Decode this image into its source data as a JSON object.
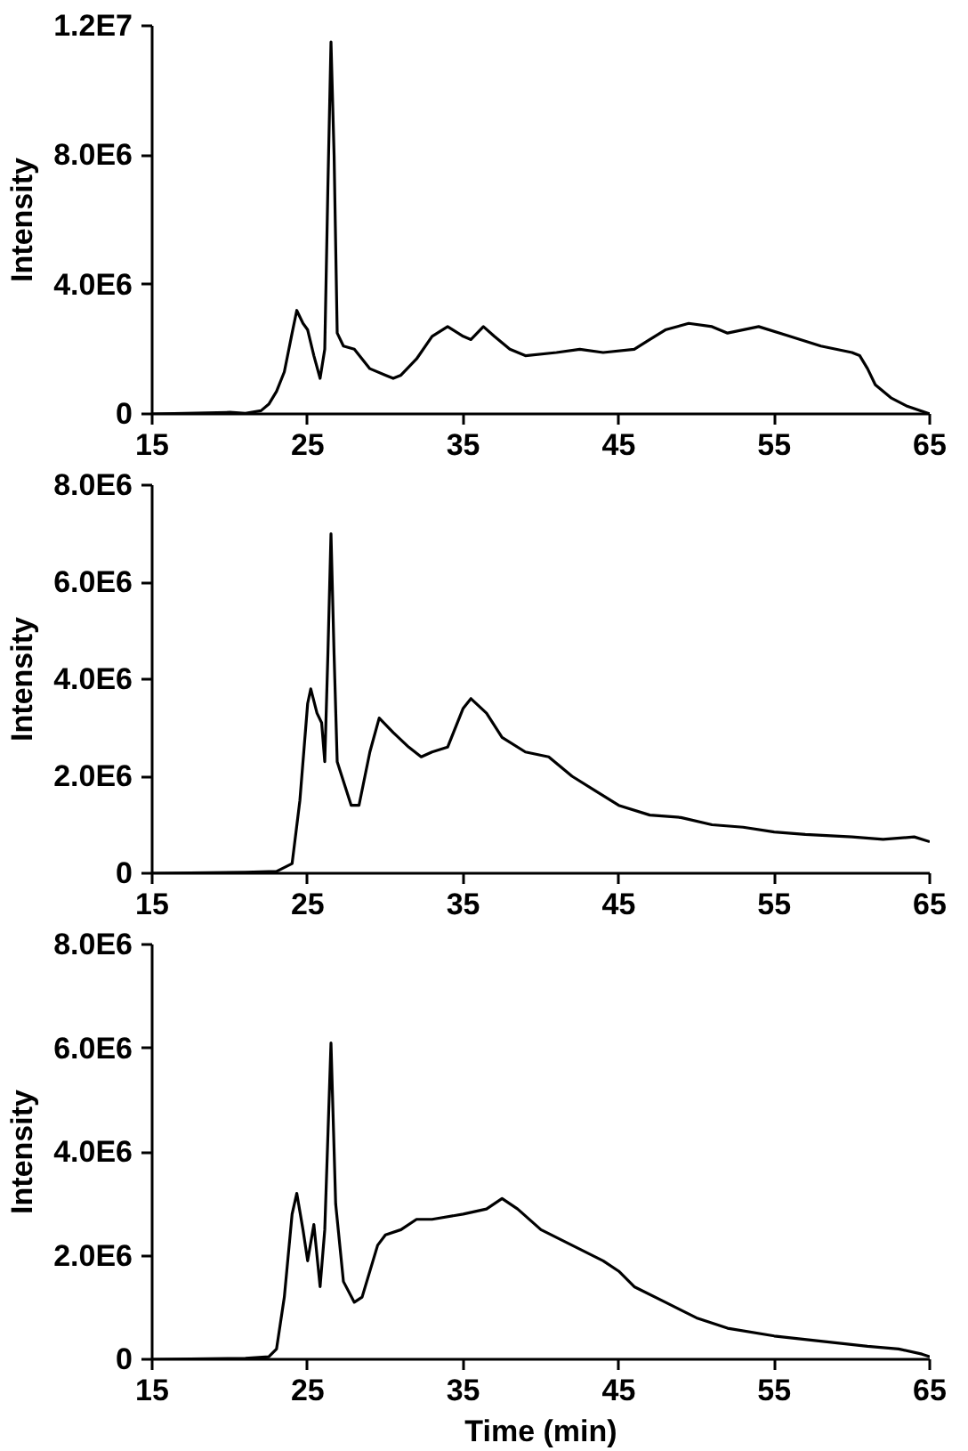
{
  "chart_data": [
    {
      "type": "line",
      "ylabel": "Intensity",
      "xlim": [
        15,
        65
      ],
      "ylim": [
        0,
        12000000
      ],
      "xticks": [
        15,
        25,
        35,
        45,
        55,
        65
      ],
      "yticks": [
        0,
        {
          "value": 4000000,
          "label": "4.0E6"
        },
        {
          "value": 8000000,
          "label": "8.0E6"
        },
        {
          "value": 12000000,
          "label": "1.2E7"
        }
      ],
      "x": [
        15,
        20,
        21,
        22,
        22.5,
        23,
        23.5,
        24,
        24.3,
        24.7,
        25,
        25.4,
        25.8,
        26.1,
        26.3,
        26.5,
        26.7,
        26.9,
        27.3,
        28,
        28.5,
        29,
        30,
        30.5,
        31,
        32,
        33,
        34,
        35,
        35.5,
        36.3,
        37,
        38,
        39,
        41,
        42.5,
        44,
        46,
        47,
        48,
        49.5,
        51,
        52,
        54,
        56,
        58,
        60,
        60.5,
        61,
        61.5,
        62.5,
        63.5,
        65
      ],
      "series": [
        {
          "color": "#000000",
          "values": [
            0,
            50000,
            20000,
            100000,
            300000,
            700000,
            1300000,
            2500000,
            3200000,
            2800000,
            2600000,
            1800000,
            1100000,
            2000000,
            7000000,
            11500000,
            8000000,
            2500000,
            2100000,
            2000000,
            1700000,
            1400000,
            1200000,
            1100000,
            1200000,
            1700000,
            2400000,
            2700000,
            2400000,
            2300000,
            2700000,
            2400000,
            2000000,
            1800000,
            1900000,
            2000000,
            1900000,
            2000000,
            2300000,
            2600000,
            2800000,
            2700000,
            2500000,
            2700000,
            2400000,
            2100000,
            1900000,
            1800000,
            1400000,
            900000,
            500000,
            250000,
            0
          ]
        }
      ]
    },
    {
      "type": "line",
      "ylabel": "Intensity",
      "xlim": [
        15,
        65
      ],
      "ylim": [
        0,
        8000000
      ],
      "xticks": [
        15,
        25,
        35,
        45,
        55,
        65
      ],
      "yticks": [
        0,
        {
          "value": 2000000,
          "label": "2.0E6"
        },
        {
          "value": 4000000,
          "label": "4.0E6"
        },
        {
          "value": 6000000,
          "label": "6.0E6"
        },
        {
          "value": 8000000,
          "label": "8.0E6"
        }
      ],
      "x": [
        15,
        21,
        23,
        24,
        24.5,
        25,
        25.2,
        25.6,
        25.9,
        26.1,
        26.3,
        26.5,
        26.7,
        26.9,
        27.4,
        27.8,
        28.3,
        29,
        29.6,
        30.5,
        31.5,
        32.3,
        33,
        34,
        35,
        35.5,
        36.5,
        37.5,
        39,
        40.5,
        42,
        43.5,
        45,
        47,
        49,
        51,
        53,
        55,
        57,
        60,
        62,
        64,
        65
      ],
      "series": [
        {
          "color": "#000000",
          "values": [
            0,
            20000,
            40000,
            200000,
            1500000,
            3500000,
            3800000,
            3300000,
            3100000,
            2300000,
            4500000,
            7000000,
            4500000,
            2300000,
            1800000,
            1400000,
            1400000,
            2500000,
            3200000,
            2900000,
            2600000,
            2400000,
            2500000,
            2600000,
            3400000,
            3600000,
            3300000,
            2800000,
            2500000,
            2400000,
            2000000,
            1700000,
            1400000,
            1200000,
            1150000,
            1000000,
            950000,
            850000,
            800000,
            750000,
            700000,
            750000,
            650000
          ]
        }
      ]
    },
    {
      "type": "line",
      "ylabel": "Intensity",
      "xlabel": "Time (min)",
      "xlim": [
        15,
        65
      ],
      "ylim": [
        0,
        8000000
      ],
      "xticks": [
        15,
        25,
        35,
        45,
        55,
        65
      ],
      "yticks": [
        0,
        {
          "value": 2000000,
          "label": "2.0E6"
        },
        {
          "value": 4000000,
          "label": "4.0E6"
        },
        {
          "value": 6000000,
          "label": "6.0E6"
        },
        {
          "value": 8000000,
          "label": "8.0E6"
        }
      ],
      "x": [
        15,
        21,
        22.5,
        23,
        23.5,
        24,
        24.3,
        24.7,
        25,
        25.4,
        25.8,
        26.1,
        26.5,
        26.8,
        27.3,
        28,
        28.5,
        29.5,
        30,
        31,
        32,
        33,
        35,
        36.5,
        37.5,
        38.5,
        40,
        42,
        44,
        45,
        46,
        48,
        50,
        52,
        55,
        58,
        61,
        63,
        64.5,
        65
      ],
      "series": [
        {
          "color": "#000000",
          "values": [
            0,
            20000,
            50000,
            200000,
            1200000,
            2800000,
            3200000,
            2500000,
            1900000,
            2600000,
            1400000,
            2500000,
            6100000,
            3000000,
            1500000,
            1100000,
            1200000,
            2200000,
            2400000,
            2500000,
            2700000,
            2700000,
            2800000,
            2900000,
            3100000,
            2900000,
            2500000,
            2200000,
            1900000,
            1700000,
            1400000,
            1100000,
            800000,
            600000,
            450000,
            350000,
            250000,
            200000,
            100000,
            50000
          ]
        }
      ]
    }
  ]
}
